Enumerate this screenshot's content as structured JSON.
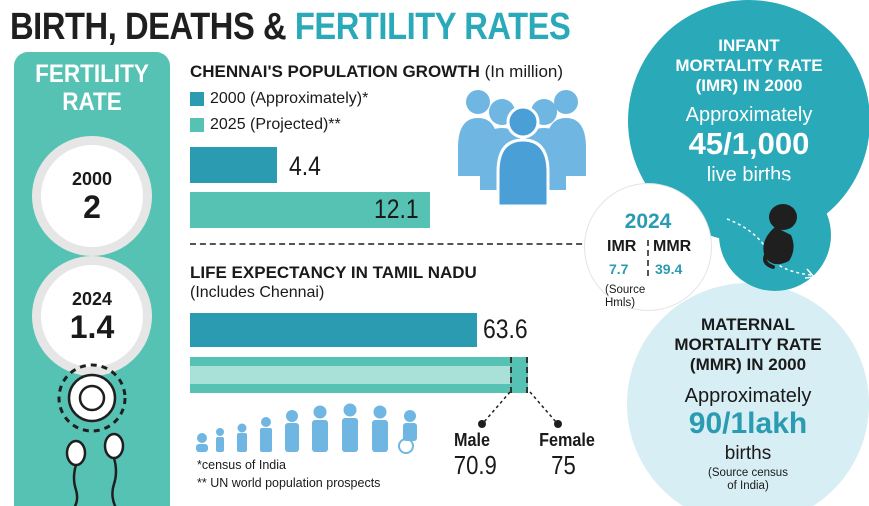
{
  "title": {
    "part1": "BIRTH, DEATHS & ",
    "part2": "FERTILITY RATES"
  },
  "fertility": {
    "title_line1": "FERTILITY",
    "title_line2": "RATE",
    "items": [
      {
        "year": "2000",
        "value": "2"
      },
      {
        "year": "2024",
        "value": "1.4"
      }
    ]
  },
  "population": {
    "title": "CHENNAI'S POPULATION GROWTH",
    "unit": "(In million)",
    "legend": [
      {
        "label": "2000 (Approximately)*",
        "color": "#2a9bb0"
      },
      {
        "label": "2025 (Projected)**",
        "color": "#56c2b3"
      }
    ],
    "value_labels": [
      "4.4",
      "12.1"
    ]
  },
  "life": {
    "title": "LIFE EXPECTANCY IN TAMIL NADU",
    "subtitle": "(Includes Chennai)",
    "overall_label": "63.6",
    "male_label": "Male",
    "male_value": "70.9",
    "female_label": "Female",
    "female_value": "75"
  },
  "footnotes": {
    "f1": "*census of India",
    "f2": "** UN world population prospects"
  },
  "imr": {
    "line1": "INFANT",
    "line2": "MORTALITY RATE",
    "line3": "(IMR) IN 2000",
    "approx": "Approximately",
    "value": "45/1,000",
    "unit": "live births"
  },
  "y2024": {
    "year": "2024",
    "imr_label": "IMR",
    "mmr_label": "MMR",
    "imr_value": "7.7",
    "mmr_value": "39.4",
    "source_line1": "(Source",
    "source_line2": "Hmls)"
  },
  "mmr": {
    "line1": "MATERNAL",
    "line2": "MORTALITY RATE",
    "line3": "(MMR) IN 2000",
    "approx": "Approximately",
    "value": "90/1lakh",
    "unit": "births",
    "source_line1": "(Source census",
    "source_line2": "of India)"
  },
  "colors": {
    "teal_dark": "#2a9bb0",
    "teal_light": "#56c2b3",
    "teal_pale": "#d6eef4",
    "accent": "#2aa9b8"
  },
  "chart_data": [
    {
      "type": "bar",
      "title": "CHENNAI'S POPULATION GROWTH (In million)",
      "categories": [
        "2000 (Approximately)*",
        "2025 (Projected)**"
      ],
      "values": [
        4.4,
        12.1
      ]
    },
    {
      "type": "bar",
      "title": "LIFE EXPECTANCY IN TAMIL NADU",
      "categories": [
        "",
        "Male",
        "Female"
      ],
      "values": [
        63.6,
        70.9,
        75
      ]
    },
    {
      "type": "table",
      "title": "FERTILITY RATE",
      "categories": [
        "2000",
        "2024"
      ],
      "values": [
        2,
        1.4
      ]
    }
  ]
}
